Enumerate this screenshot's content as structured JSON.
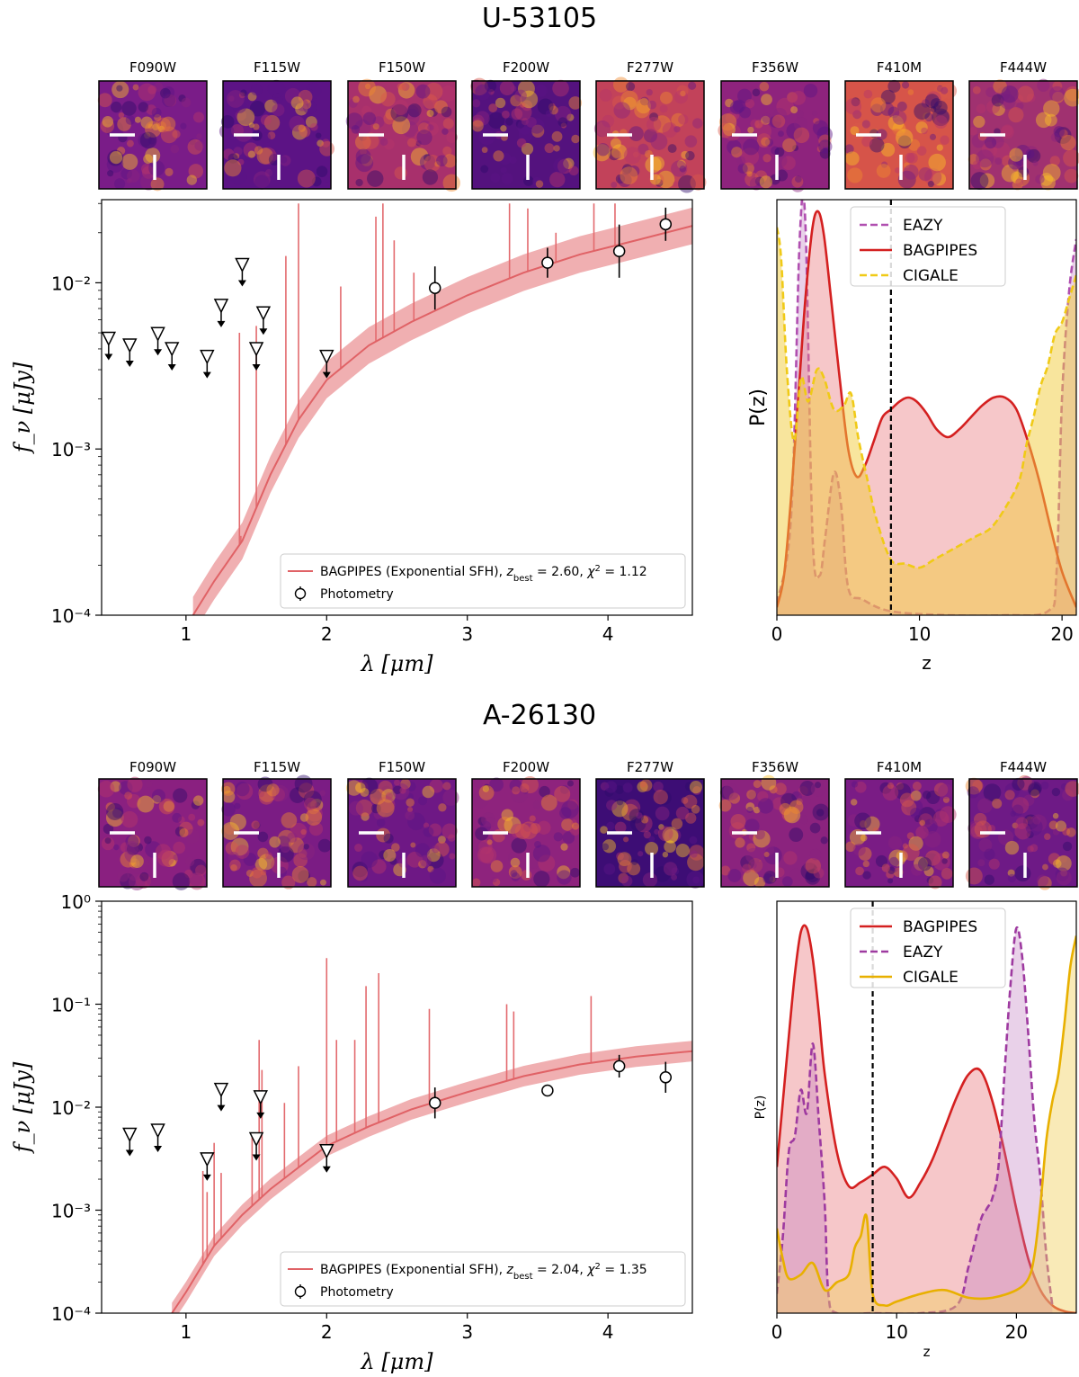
{
  "panels": [
    {
      "id": "U-53105",
      "title": "U-53105",
      "filters": [
        "F090W",
        "F115W",
        "F150W",
        "F200W",
        "F277W",
        "F356W",
        "F410M",
        "F444W"
      ],
      "filter_shades": [
        "#7a1c88",
        "#5c1385",
        "#a8306c",
        "#54127e",
        "#c2425a",
        "#8e237d",
        "#d65449",
        "#a03170"
      ],
      "sed": {
        "type": "scatter",
        "xlabel": "λ [μm]",
        "ylabel": "f_ν [μJy]",
        "xlim": [
          0.4,
          4.6
        ],
        "ylim_log10": [
          -4,
          -1.5
        ],
        "xticks": [
          1,
          2,
          3,
          4
        ],
        "xtick_labels": [
          "1",
          "2",
          "3",
          "4"
        ],
        "yticks_exp": [
          -4,
          -3,
          -2
        ],
        "ytick_labels": [
          "10⁻⁴",
          "10⁻³",
          "10⁻²"
        ],
        "photometry": [
          {
            "x": 2.77,
            "y": 0.0093,
            "yerr_dex": 0.13
          },
          {
            "x": 3.57,
            "y": 0.0132,
            "yerr_dex": 0.09
          },
          {
            "x": 4.08,
            "y": 0.0155,
            "yerr_dex": 0.16
          },
          {
            "x": 4.41,
            "y": 0.0225,
            "yerr_dex": 0.1
          }
        ],
        "upper_limits": [
          {
            "x": 0.45,
            "y": 0.0045
          },
          {
            "x": 0.6,
            "y": 0.0041
          },
          {
            "x": 0.8,
            "y": 0.0048
          },
          {
            "x": 0.9,
            "y": 0.0039
          },
          {
            "x": 1.15,
            "y": 0.0035
          },
          {
            "x": 1.25,
            "y": 0.0071
          },
          {
            "x": 1.4,
            "y": 0.0125
          },
          {
            "x": 1.5,
            "y": 0.0039
          },
          {
            "x": 1.55,
            "y": 0.0064
          },
          {
            "x": 2.0,
            "y": 0.0035
          }
        ],
        "model_x": [
          1.05,
          1.2,
          1.4,
          1.6,
          1.8,
          2.0,
          2.3,
          2.6,
          3.0,
          3.4,
          3.8,
          4.2,
          4.6
        ],
        "model_y": [
          0.0001,
          0.00016,
          0.00028,
          0.0007,
          0.0015,
          0.0026,
          0.0042,
          0.0058,
          0.0084,
          0.0115,
          0.0148,
          0.018,
          0.022
        ],
        "model_band_dex": 0.11,
        "emission_lines": [
          {
            "x": 1.38,
            "y": 0.005
          },
          {
            "x": 1.39,
            "y": 0.0003
          },
          {
            "x": 1.5,
            "y": 0.0055
          },
          {
            "x": 1.71,
            "y": 0.0145
          },
          {
            "x": 1.8,
            "y": 0.03
          },
          {
            "x": 2.1,
            "y": 0.0095
          },
          {
            "x": 2.35,
            "y": 0.025
          },
          {
            "x": 2.4,
            "y": 0.03
          },
          {
            "x": 2.48,
            "y": 0.018
          },
          {
            "x": 2.62,
            "y": 0.0115
          },
          {
            "x": 3.3,
            "y": 0.03
          },
          {
            "x": 3.43,
            "y": 0.028
          },
          {
            "x": 3.63,
            "y": 0.02
          },
          {
            "x": 3.9,
            "y": 0.03
          },
          {
            "x": 4.05,
            "y": 0.03
          }
        ],
        "legend": {
          "model_prefix": "BAGPIPES (Exponential SFH), ",
          "z_symbol": "z",
          "z_sub": "best",
          "z_value": " = 2.60, ",
          "chi_symbol": "χ",
          "chi_sup": "2",
          "chi_value": " = 1.12",
          "photometry_label": "Photometry"
        }
      },
      "pz": {
        "type": "area",
        "xlabel": "z",
        "ylabel": "P(z)",
        "xlim": [
          0,
          21
        ],
        "ylim": [
          0,
          1.05
        ],
        "xticks": [
          0,
          10,
          20
        ],
        "xtick_labels": [
          "0",
          "10",
          "20"
        ],
        "z_marker": 8.0,
        "series": [
          {
            "name": "EAZY",
            "color": "#b04fb0",
            "dashed": true,
            "fill": "#c07bc0",
            "fill_opacity": 0.35,
            "x": [
              0,
              1.0,
              1.6,
              2.0,
              2.5,
              3.0,
              3.4,
              4.0,
              4.5,
              5.0,
              6.0,
              8.0,
              12.0,
              16.0,
              19.0,
              19.6,
              20.0,
              20.5,
              21.0
            ],
            "y": [
              0.03,
              0.25,
              0.95,
              0.99,
              0.2,
              0.1,
              0.2,
              0.36,
              0.28,
              0.07,
              0.04,
              0.01,
              0.0,
              0.0,
              0.01,
              0.1,
              0.55,
              0.82,
              0.95
            ]
          },
          {
            "name": "BAGPIPES",
            "color": "#d42020",
            "dashed": false,
            "fill": "#e9797f",
            "fill_opacity": 0.42,
            "x": [
              0,
              0.5,
              1.0,
              1.5,
              2.0,
              2.5,
              2.9,
              3.3,
              3.8,
              4.4,
              5.0,
              5.6,
              6.2,
              6.8,
              7.4,
              8.0,
              8.6,
              9.2,
              9.8,
              10.5,
              11.2,
              12.0,
              12.8,
              13.6,
              14.4,
              15.2,
              16.0,
              16.8,
              17.6,
              18.4,
              19.2,
              20.0,
              21.0
            ],
            "y": [
              0.02,
              0.1,
              0.3,
              0.55,
              0.8,
              0.98,
              1.02,
              0.96,
              0.8,
              0.6,
              0.42,
              0.35,
              0.38,
              0.44,
              0.5,
              0.52,
              0.54,
              0.55,
              0.54,
              0.51,
              0.47,
              0.45,
              0.47,
              0.5,
              0.53,
              0.55,
              0.55,
              0.52,
              0.44,
              0.34,
              0.22,
              0.11,
              0.02
            ]
          },
          {
            "name": "CIGALE",
            "color": "#f0ca17",
            "dashed": true,
            "fill": "#f2cc3c",
            "fill_opacity": 0.5,
            "x": [
              0,
              0.3,
              0.7,
              1.2,
              1.7,
              2.2,
              2.8,
              3.3,
              4.0,
              4.7,
              5.2,
              5.7,
              6.3,
              7.0,
              8.0,
              9.0,
              10.0,
              11.0,
              12.0,
              13.0,
              14.0,
              15.0,
              16.0,
              17.0,
              17.5,
              18.0,
              18.5,
              19.0,
              19.5,
              20.0,
              20.5,
              21.0
            ],
            "y": [
              0.98,
              0.9,
              0.62,
              0.44,
              0.6,
              0.54,
              0.62,
              0.6,
              0.52,
              0.53,
              0.56,
              0.45,
              0.35,
              0.24,
              0.14,
              0.13,
              0.12,
              0.14,
              0.16,
              0.18,
              0.2,
              0.22,
              0.27,
              0.34,
              0.43,
              0.5,
              0.58,
              0.63,
              0.71,
              0.74,
              0.8,
              0.86
            ]
          }
        ],
        "legend_order": [
          "EAZY",
          "BAGPIPES",
          "CIGALE"
        ]
      }
    },
    {
      "id": "A-26130",
      "title": "A-26130",
      "filters": [
        "F090W",
        "F115W",
        "F150W",
        "F200W",
        "F277W",
        "F356W",
        "F410M",
        "F444W"
      ],
      "filter_shades": [
        "#8a2080",
        "#7b1c84",
        "#6e1885",
        "#8e237d",
        "#3d0d75",
        "#8b237e",
        "#7a1c85",
        "#6e1a86"
      ],
      "sed": {
        "type": "scatter",
        "xlabel": "λ [μm]",
        "ylabel": "f_ν [μJy]",
        "xlim": [
          0.4,
          4.6
        ],
        "ylim_log10": [
          -4,
          0
        ],
        "xticks": [
          1,
          2,
          3,
          4
        ],
        "xtick_labels": [
          "1",
          "2",
          "3",
          "4"
        ],
        "yticks_exp": [
          -4,
          -3,
          -2,
          -1,
          0
        ],
        "ytick_labels": [
          "10⁻⁴",
          "10⁻³",
          "10⁻²",
          "10⁻¹",
          "10⁰"
        ],
        "photometry": [
          {
            "x": 2.77,
            "y": 0.011,
            "yerr_dex": 0.15
          },
          {
            "x": 3.57,
            "y": 0.0145,
            "yerr_dex": 0.0
          },
          {
            "x": 4.08,
            "y": 0.025,
            "yerr_dex": 0.11
          },
          {
            "x": 4.41,
            "y": 0.0195,
            "yerr_dex": 0.15
          }
        ],
        "upper_limits": [
          {
            "x": 0.6,
            "y": 0.0052
          },
          {
            "x": 0.8,
            "y": 0.0057
          },
          {
            "x": 1.15,
            "y": 0.003
          },
          {
            "x": 1.25,
            "y": 0.0142
          },
          {
            "x": 1.5,
            "y": 0.0047
          },
          {
            "x": 1.53,
            "y": 0.012
          },
          {
            "x": 2.0,
            "y": 0.0036
          }
        ],
        "model_x": [
          0.9,
          1.0,
          1.2,
          1.4,
          1.6,
          1.8,
          2.0,
          2.3,
          2.6,
          3.0,
          3.4,
          3.8,
          4.2,
          4.6
        ],
        "model_y": [
          0.0001,
          0.00016,
          0.00045,
          0.0009,
          0.0016,
          0.0026,
          0.0042,
          0.0065,
          0.0095,
          0.014,
          0.02,
          0.026,
          0.031,
          0.035
        ],
        "model_band_dex": 0.1,
        "emission_lines": [
          {
            "x": 1.12,
            "y": 0.0024
          },
          {
            "x": 1.15,
            "y": 0.0015
          },
          {
            "x": 1.2,
            "y": 0.0045
          },
          {
            "x": 1.25,
            "y": 0.0023
          },
          {
            "x": 1.47,
            "y": 0.0055
          },
          {
            "x": 1.52,
            "y": 0.045
          },
          {
            "x": 1.54,
            "y": 0.023
          },
          {
            "x": 1.7,
            "y": 0.011
          },
          {
            "x": 1.8,
            "y": 0.025
          },
          {
            "x": 2.0,
            "y": 0.28
          },
          {
            "x": 2.07,
            "y": 0.045
          },
          {
            "x": 2.2,
            "y": 0.045
          },
          {
            "x": 2.28,
            "y": 0.15
          },
          {
            "x": 2.37,
            "y": 0.2
          },
          {
            "x": 2.73,
            "y": 0.09
          },
          {
            "x": 3.28,
            "y": 0.1
          },
          {
            "x": 3.33,
            "y": 0.085
          },
          {
            "x": 3.88,
            "y": 0.12
          }
        ],
        "legend": {
          "model_prefix": "BAGPIPES (Exponential SFH), ",
          "z_symbol": "z",
          "z_sub": "best",
          "z_value": " = 2.04, ",
          "chi_symbol": "χ",
          "chi_sup": "2",
          "chi_value": " = 1.35",
          "photometry_label": "Photometry"
        }
      },
      "pz": {
        "type": "area",
        "xlabel": "z",
        "ylabel": "P(z)",
        "xlim": [
          0,
          25
        ],
        "ylim": [
          0,
          1.07
        ],
        "xticks": [
          0,
          10,
          20
        ],
        "xtick_labels": [
          "0",
          "10",
          "20"
        ],
        "z_marker": 8.0,
        "series": [
          {
            "name": "BAGPIPES",
            "color": "#d42020",
            "dashed": false,
            "fill": "#e9797f",
            "fill_opacity": 0.42,
            "x": [
              0,
              0.5,
              1.0,
              1.5,
              2.0,
              2.5,
              3.0,
              3.5,
              4.0,
              5.0,
              6.0,
              7.0,
              8.0,
              9.0,
              10.0,
              11.0,
              12.0,
              13.0,
              14.0,
              15.0,
              16.0,
              17.0,
              18.0,
              19.0,
              20.0,
              21.0,
              22.0,
              23.0,
              24.0,
              25.0
            ],
            "y": [
              0.38,
              0.55,
              0.72,
              0.88,
              0.99,
              1.0,
              0.92,
              0.78,
              0.62,
              0.42,
              0.33,
              0.34,
              0.36,
              0.38,
              0.35,
              0.3,
              0.34,
              0.4,
              0.48,
              0.56,
              0.62,
              0.63,
              0.55,
              0.42,
              0.27,
              0.14,
              0.06,
              0.02,
              0.005,
              0.0
            ]
          },
          {
            "name": "EAZY",
            "color": "#9e3aa0",
            "dashed": true,
            "fill": "#c07bc0",
            "fill_opacity": 0.35,
            "x": [
              0,
              0.5,
              1.0,
              1.5,
              2.0,
              2.5,
              3.0,
              3.5,
              4.0,
              4.3,
              5.0,
              8.0,
              12.0,
              15.0,
              16.0,
              17.0,
              17.5,
              18.0,
              18.5,
              19.0,
              19.5,
              20.0,
              20.5,
              21.0,
              21.5,
              22.0,
              22.5,
              23.0
            ],
            "y": [
              0.05,
              0.2,
              0.42,
              0.46,
              0.58,
              0.52,
              0.7,
              0.5,
              0.28,
              0.05,
              0.0,
              0.0,
              0.0,
              0.02,
              0.12,
              0.24,
              0.27,
              0.3,
              0.38,
              0.62,
              0.85,
              1.0,
              0.92,
              0.72,
              0.5,
              0.35,
              0.15,
              0.02
            ]
          },
          {
            "name": "CIGALE",
            "color": "#e8b000",
            "dashed": false,
            "fill": "#f2d060",
            "fill_opacity": 0.45,
            "x": [
              0,
              0.5,
              1.0,
              2.0,
              3.0,
              4.0,
              5.0,
              6.0,
              6.5,
              7.0,
              7.5,
              8.0,
              9.0,
              10.0,
              12.0,
              14.0,
              16.0,
              18.0,
              20.0,
              21.0,
              21.5,
              22.0,
              22.5,
              23.0,
              23.5,
              24.0,
              24.5,
              25.0
            ],
            "y": [
              0.22,
              0.14,
              0.09,
              0.1,
              0.13,
              0.06,
              0.08,
              0.1,
              0.17,
              0.2,
              0.25,
              0.05,
              0.02,
              0.03,
              0.05,
              0.06,
              0.04,
              0.04,
              0.06,
              0.09,
              0.15,
              0.28,
              0.45,
              0.55,
              0.62,
              0.75,
              0.9,
              0.98
            ]
          }
        ],
        "legend_order": [
          "BAGPIPES",
          "EAZY",
          "CIGALE"
        ]
      }
    }
  ]
}
